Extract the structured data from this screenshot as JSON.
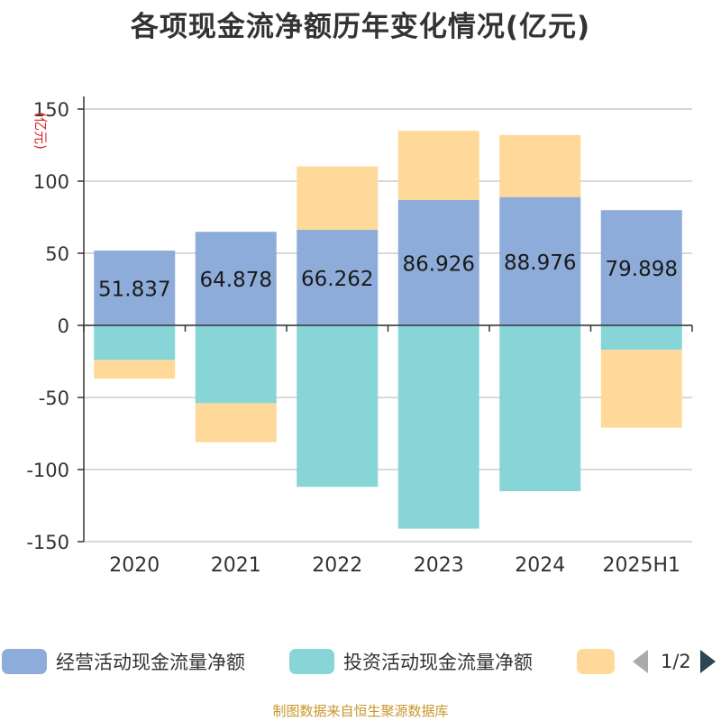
{
  "chart_data": {
    "type": "bar",
    "stacked": true,
    "title": "各项现金流净额历年变化情况(亿元)",
    "ylabel": "(亿元)",
    "categories": [
      "2020",
      "2021",
      "2022",
      "2023",
      "2024",
      "2025H1"
    ],
    "ylim": [
      -150,
      150
    ],
    "yticks": [
      150,
      100,
      50,
      0,
      -50,
      -100,
      -150
    ],
    "grid": true,
    "legend_position": "bottom",
    "series": [
      {
        "name": "经营活动现金流量净额",
        "color": "#8eacd9",
        "values": [
          51.837,
          64.878,
          66.262,
          86.926,
          88.976,
          79.898
        ],
        "labels": [
          "51.837",
          "64.878",
          "66.262",
          "86.926",
          "88.976",
          "79.898"
        ]
      },
      {
        "name": "投资活动现金流量净额",
        "color": "#88d5d8",
        "values": [
          -24,
          -54,
          -112,
          -141,
          -115,
          -17
        ]
      },
      {
        "name": "",
        "color": "#ffd999",
        "values": [
          -13,
          -27,
          44,
          48,
          43,
          -54
        ]
      }
    ]
  },
  "legend": {
    "items": [
      {
        "label": "经营活动现金流量净额",
        "color": "#8eacd9"
      },
      {
        "label": "投资活动现金流量净额",
        "color": "#88d5d8"
      },
      {
        "label": "",
        "color": "#ffd999"
      }
    ],
    "pager": "1/2"
  },
  "footer": {
    "source": "制图数据来自恒生聚源数据库"
  }
}
